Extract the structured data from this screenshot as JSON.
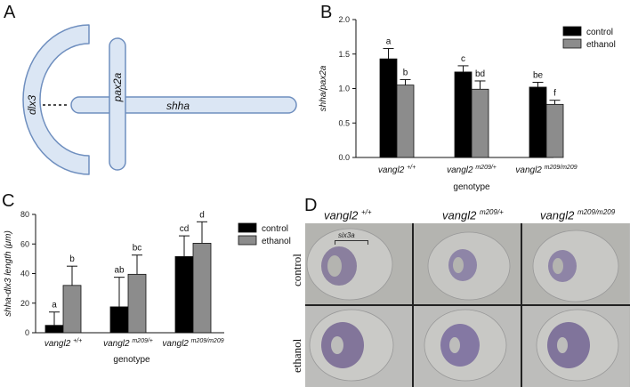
{
  "panels": {
    "a": {
      "letter": "A",
      "labels": {
        "dlx3": "dlx3",
        "pax2a": "pax2a",
        "shha": "shha"
      }
    },
    "b": {
      "letter": "B"
    },
    "c": {
      "letter": "C"
    },
    "d": {
      "letter": "D",
      "columns": [
        {
          "gene": "vangl2",
          "allele": "+/+"
        },
        {
          "gene": "vangl2",
          "allele": "m209/+"
        },
        {
          "gene": "vangl2",
          "allele": "m209/m209"
        }
      ],
      "rows": [
        "control",
        "ethanol"
      ],
      "annotation": "six3a"
    }
  },
  "colors": {
    "control": "#000000",
    "ethanol": "#8c8c8c",
    "schematic_fill": "#dbe6f4",
    "schematic_stroke": "#6f8fbf"
  },
  "chart_data": [
    {
      "id": "B",
      "type": "bar",
      "categories": [
        {
          "gene": "vangl2",
          "allele": "+/+"
        },
        {
          "gene": "vangl2",
          "allele": "m209/+"
        },
        {
          "gene": "vangl2",
          "allele": "m209/m209"
        }
      ],
      "series": [
        {
          "name": "control",
          "values": [
            1.43,
            1.24,
            1.02
          ],
          "errors": [
            0.15,
            0.09,
            0.07
          ],
          "letters": [
            "a",
            "c",
            "be"
          ]
        },
        {
          "name": "ethanol",
          "values": [
            1.05,
            0.99,
            0.77
          ],
          "errors": [
            0.08,
            0.12,
            0.06
          ],
          "letters": [
            "b",
            "bd",
            "f"
          ]
        }
      ],
      "xlabel": "genotype",
      "ylabel": "shha/pax2a",
      "ylim": [
        0,
        2.0
      ],
      "yticks": [
        "0.0",
        "0.5",
        "1.0",
        "1.5",
        "2.0"
      ],
      "legend_position": "top-right"
    },
    {
      "id": "C",
      "type": "bar",
      "categories": [
        {
          "gene": "vangl2",
          "allele": "+/+"
        },
        {
          "gene": "vangl2",
          "allele": "m209/+"
        },
        {
          "gene": "vangl2",
          "allele": "m209/m209"
        }
      ],
      "series": [
        {
          "name": "control",
          "values": [
            5,
            17.5,
            51.5
          ],
          "errors": [
            9,
            20,
            14
          ],
          "letters": [
            "a",
            "ab",
            "cd"
          ]
        },
        {
          "name": "ethanol",
          "values": [
            32,
            39.5,
            60.5
          ],
          "errors": [
            13,
            13,
            14.5
          ],
          "letters": [
            "b",
            "bc",
            "d"
          ]
        }
      ],
      "xlabel": "genotype",
      "ylabel": "shha-dlx3 length (μm)",
      "ylim": [
        0,
        80
      ],
      "yticks": [
        "0",
        "20",
        "40",
        "60",
        "80"
      ],
      "legend_position": "top-right"
    }
  ]
}
